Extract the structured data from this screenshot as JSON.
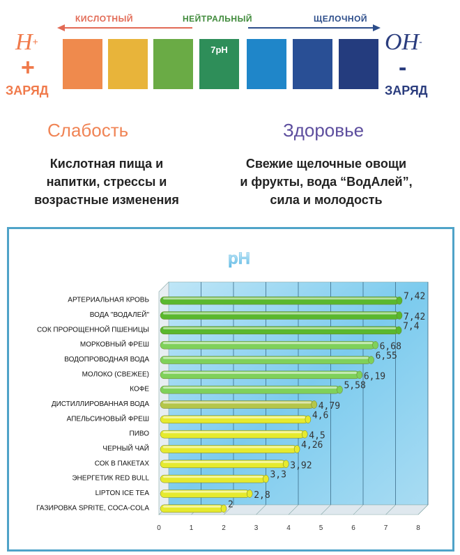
{
  "scale": {
    "acidic_label": "КИСЛОТНЫЙ",
    "neutral_label": "НЕЙТРАЛЬНЫЙ",
    "alkaline_label": "ЩЕЛОЧНОЙ",
    "neutral_swatch_text": "7pH",
    "swatch_colors": [
      "#ef8a4d",
      "#e8b43a",
      "#6aab45",
      "#2e8e59",
      "#1f86c9",
      "#294f95",
      "#243c7e"
    ],
    "left_ion": "H",
    "left_ion_sup": "+",
    "left_sign": "+",
    "left_charge": "ЗАРЯД",
    "right_ion": "OH",
    "right_ion_sup": "-",
    "right_sign": "-",
    "right_charge": "ЗАРЯД",
    "colors": {
      "acid": "#e26a55",
      "neutral": "#3f8a3a",
      "alkaline": "#2c4d8a",
      "left_charge": "#f07a4b",
      "right_charge": "#2b3d7e"
    }
  },
  "left": {
    "heading": "Слабость",
    "text_lines": [
      "Кислотная пища и",
      "напитки, стрессы и",
      "возрастные изменения"
    ]
  },
  "right": {
    "heading": "Здоровье",
    "text_lines": [
      "Свежие щелочные овощи",
      "и фрукты, вода “ВодАлей”,",
      "сила и молодость"
    ]
  },
  "chart_data": {
    "type": "bar",
    "orientation": "horizontal",
    "title": "pH",
    "categories": [
      "АРТЕРИАЛЬНАЯ КРОВЬ",
      "ВОДА \"ВОДАЛЕЙ\"",
      "СОК ПРОРОЩЕННОЙ ПШЕНИЦЫ",
      "МОРКОВНЫЙ ФРЕШ",
      "ВОДОПРОВОДНАЯ ВОДА",
      "МОЛОКО (СВЕЖЕЕ)",
      "КОФЕ",
      "ДИСТИЛЛИРОВАННАЯ ВОДА",
      "АПЕЛЬСИНОВЫЙ ФРЕШ",
      "ПИВО",
      "ЧЕРНЫЙ ЧАЙ",
      "СОК В ПАКЕТАХ",
      "ЭНЕРГЕТИК RED BULL",
      "LIPTON ICE TEA",
      "ГАЗИРОВКА SPRITE, COCA-COLA"
    ],
    "values": [
      7.42,
      7.42,
      7.4,
      6.68,
      6.55,
      6.19,
      5.58,
      4.79,
      4.6,
      4.5,
      4.26,
      3.92,
      3.3,
      2.8,
      2
    ],
    "value_labels": [
      "7,42",
      "7,42",
      "7,4",
      "6,68",
      "6,55",
      "6,19",
      "5,58",
      "4,79",
      "4,6",
      "4,5",
      "4,26",
      "3,92",
      "3,3",
      "2,8",
      "2"
    ],
    "bar_colors": [
      "#5ab82e",
      "#5ab82e",
      "#5ab82e",
      "#7fd15a",
      "#7fd15a",
      "#7fd15a",
      "#7fd15a",
      "#b5c64a",
      "#e6ea2e",
      "#e6ea2e",
      "#e6ea2e",
      "#e6ea2e",
      "#e6ea2e",
      "#e6ea2e",
      "#e6ea2e"
    ],
    "xlim": [
      0,
      8
    ],
    "xticks": [
      "0",
      "1",
      "2",
      "3",
      "4",
      "5",
      "6",
      "7",
      "8"
    ],
    "grid": true
  }
}
